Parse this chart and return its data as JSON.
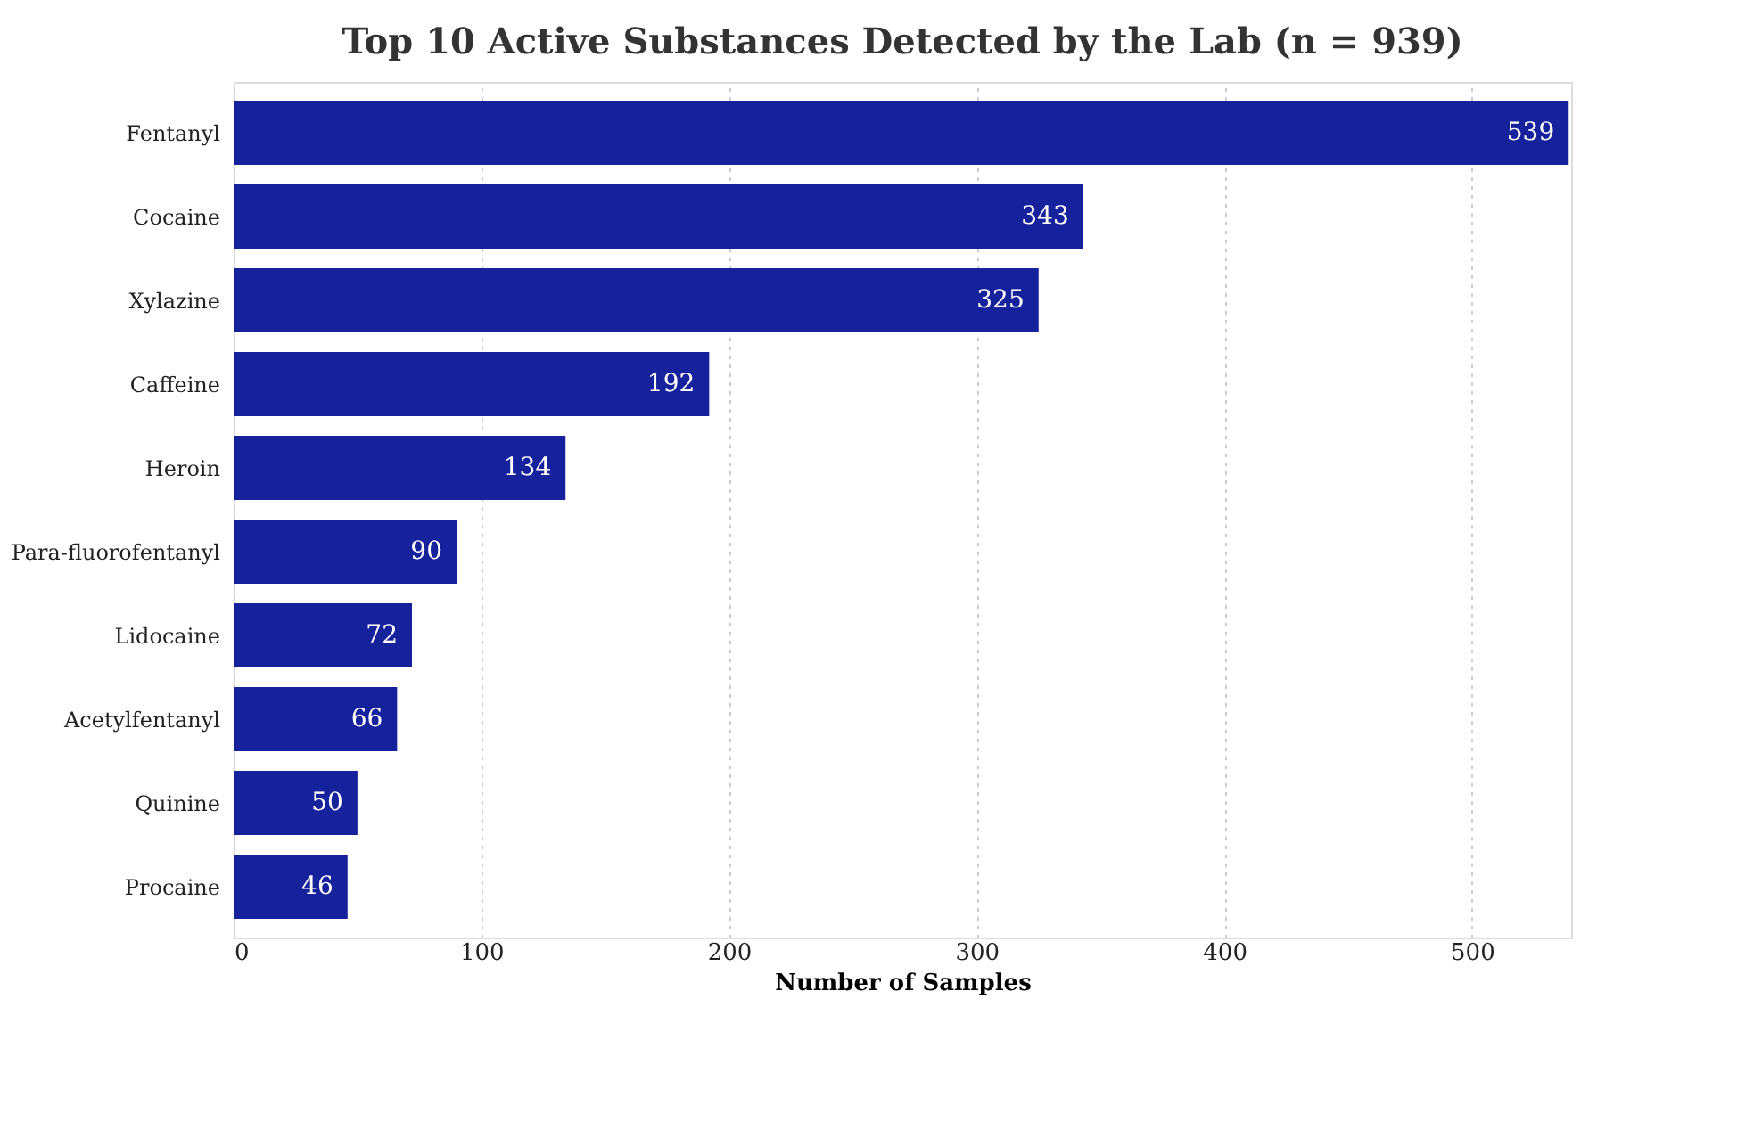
{
  "chart_data": {
    "type": "bar",
    "orientation": "horizontal",
    "title": "Top 10 Active Substances Detected by the Lab (n = 939)",
    "xlabel": "Number of Samples",
    "categories": [
      "Fentanyl",
      "Cocaine",
      "Xylazine",
      "Caffeine",
      "Heroin",
      "Para-fluorofentanyl",
      "Lidocaine",
      "Acetylfentanyl",
      "Quinine",
      "Procaine"
    ],
    "values": [
      539,
      343,
      325,
      192,
      134,
      90,
      72,
      66,
      50,
      46
    ],
    "color": "#16229c",
    "xlim": [
      0,
      540
    ],
    "xticks": [
      0,
      100,
      200,
      300,
      400,
      500
    ],
    "grid": "x",
    "data_labels": true
  }
}
